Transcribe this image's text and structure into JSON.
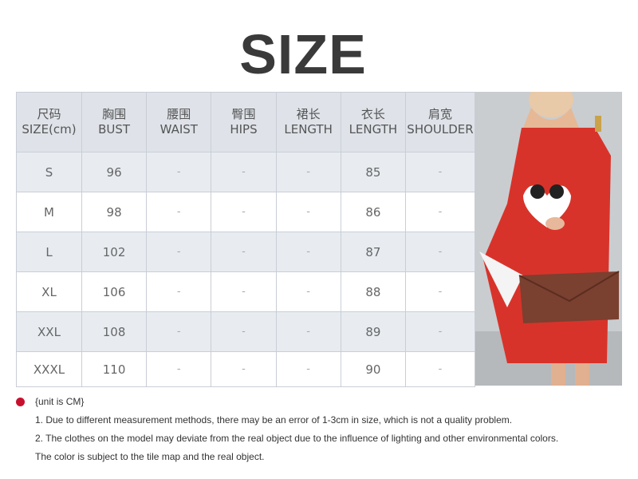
{
  "title": "SIZE",
  "table": {
    "headers": [
      [
        "尺码",
        "SIZE(cm)"
      ],
      [
        "胸围",
        "BUST"
      ],
      [
        "腰围",
        "WAIST"
      ],
      [
        "臀围",
        "HIPS"
      ],
      [
        "裙长",
        "LENGTH"
      ],
      [
        "衣长",
        "LENGTH"
      ],
      [
        "肩宽",
        "SHOULDER"
      ]
    ],
    "rows": [
      [
        "S",
        "96",
        "-",
        "-",
        "-",
        "85",
        "-"
      ],
      [
        "M",
        "98",
        "-",
        "-",
        "-",
        "86",
        "-"
      ],
      [
        "L",
        "102",
        "-",
        "-",
        "-",
        "87",
        "-"
      ],
      [
        "XL",
        "106",
        "-",
        "-",
        "-",
        "88",
        "-"
      ],
      [
        "XXL",
        "108",
        "-",
        "-",
        "-",
        "89",
        "-"
      ],
      [
        "XXXL",
        "110",
        "-",
        "-",
        "-",
        "90",
        "-"
      ]
    ]
  },
  "notes": {
    "unit": "{unit is CM}",
    "lines": [
      "1. Due to different measurement methods, there may be an error of 1-3cm in size, which is not a quality problem.",
      "2. The clothes on the model may deviate from the real object due to the influence of lighting and other environmental colors.",
      "The color is subject to the tile map and the real object."
    ]
  },
  "colors": {
    "dress": "#d8332a",
    "bullet": "#c8102e",
    "header_bg": "#dfe3e9"
  }
}
